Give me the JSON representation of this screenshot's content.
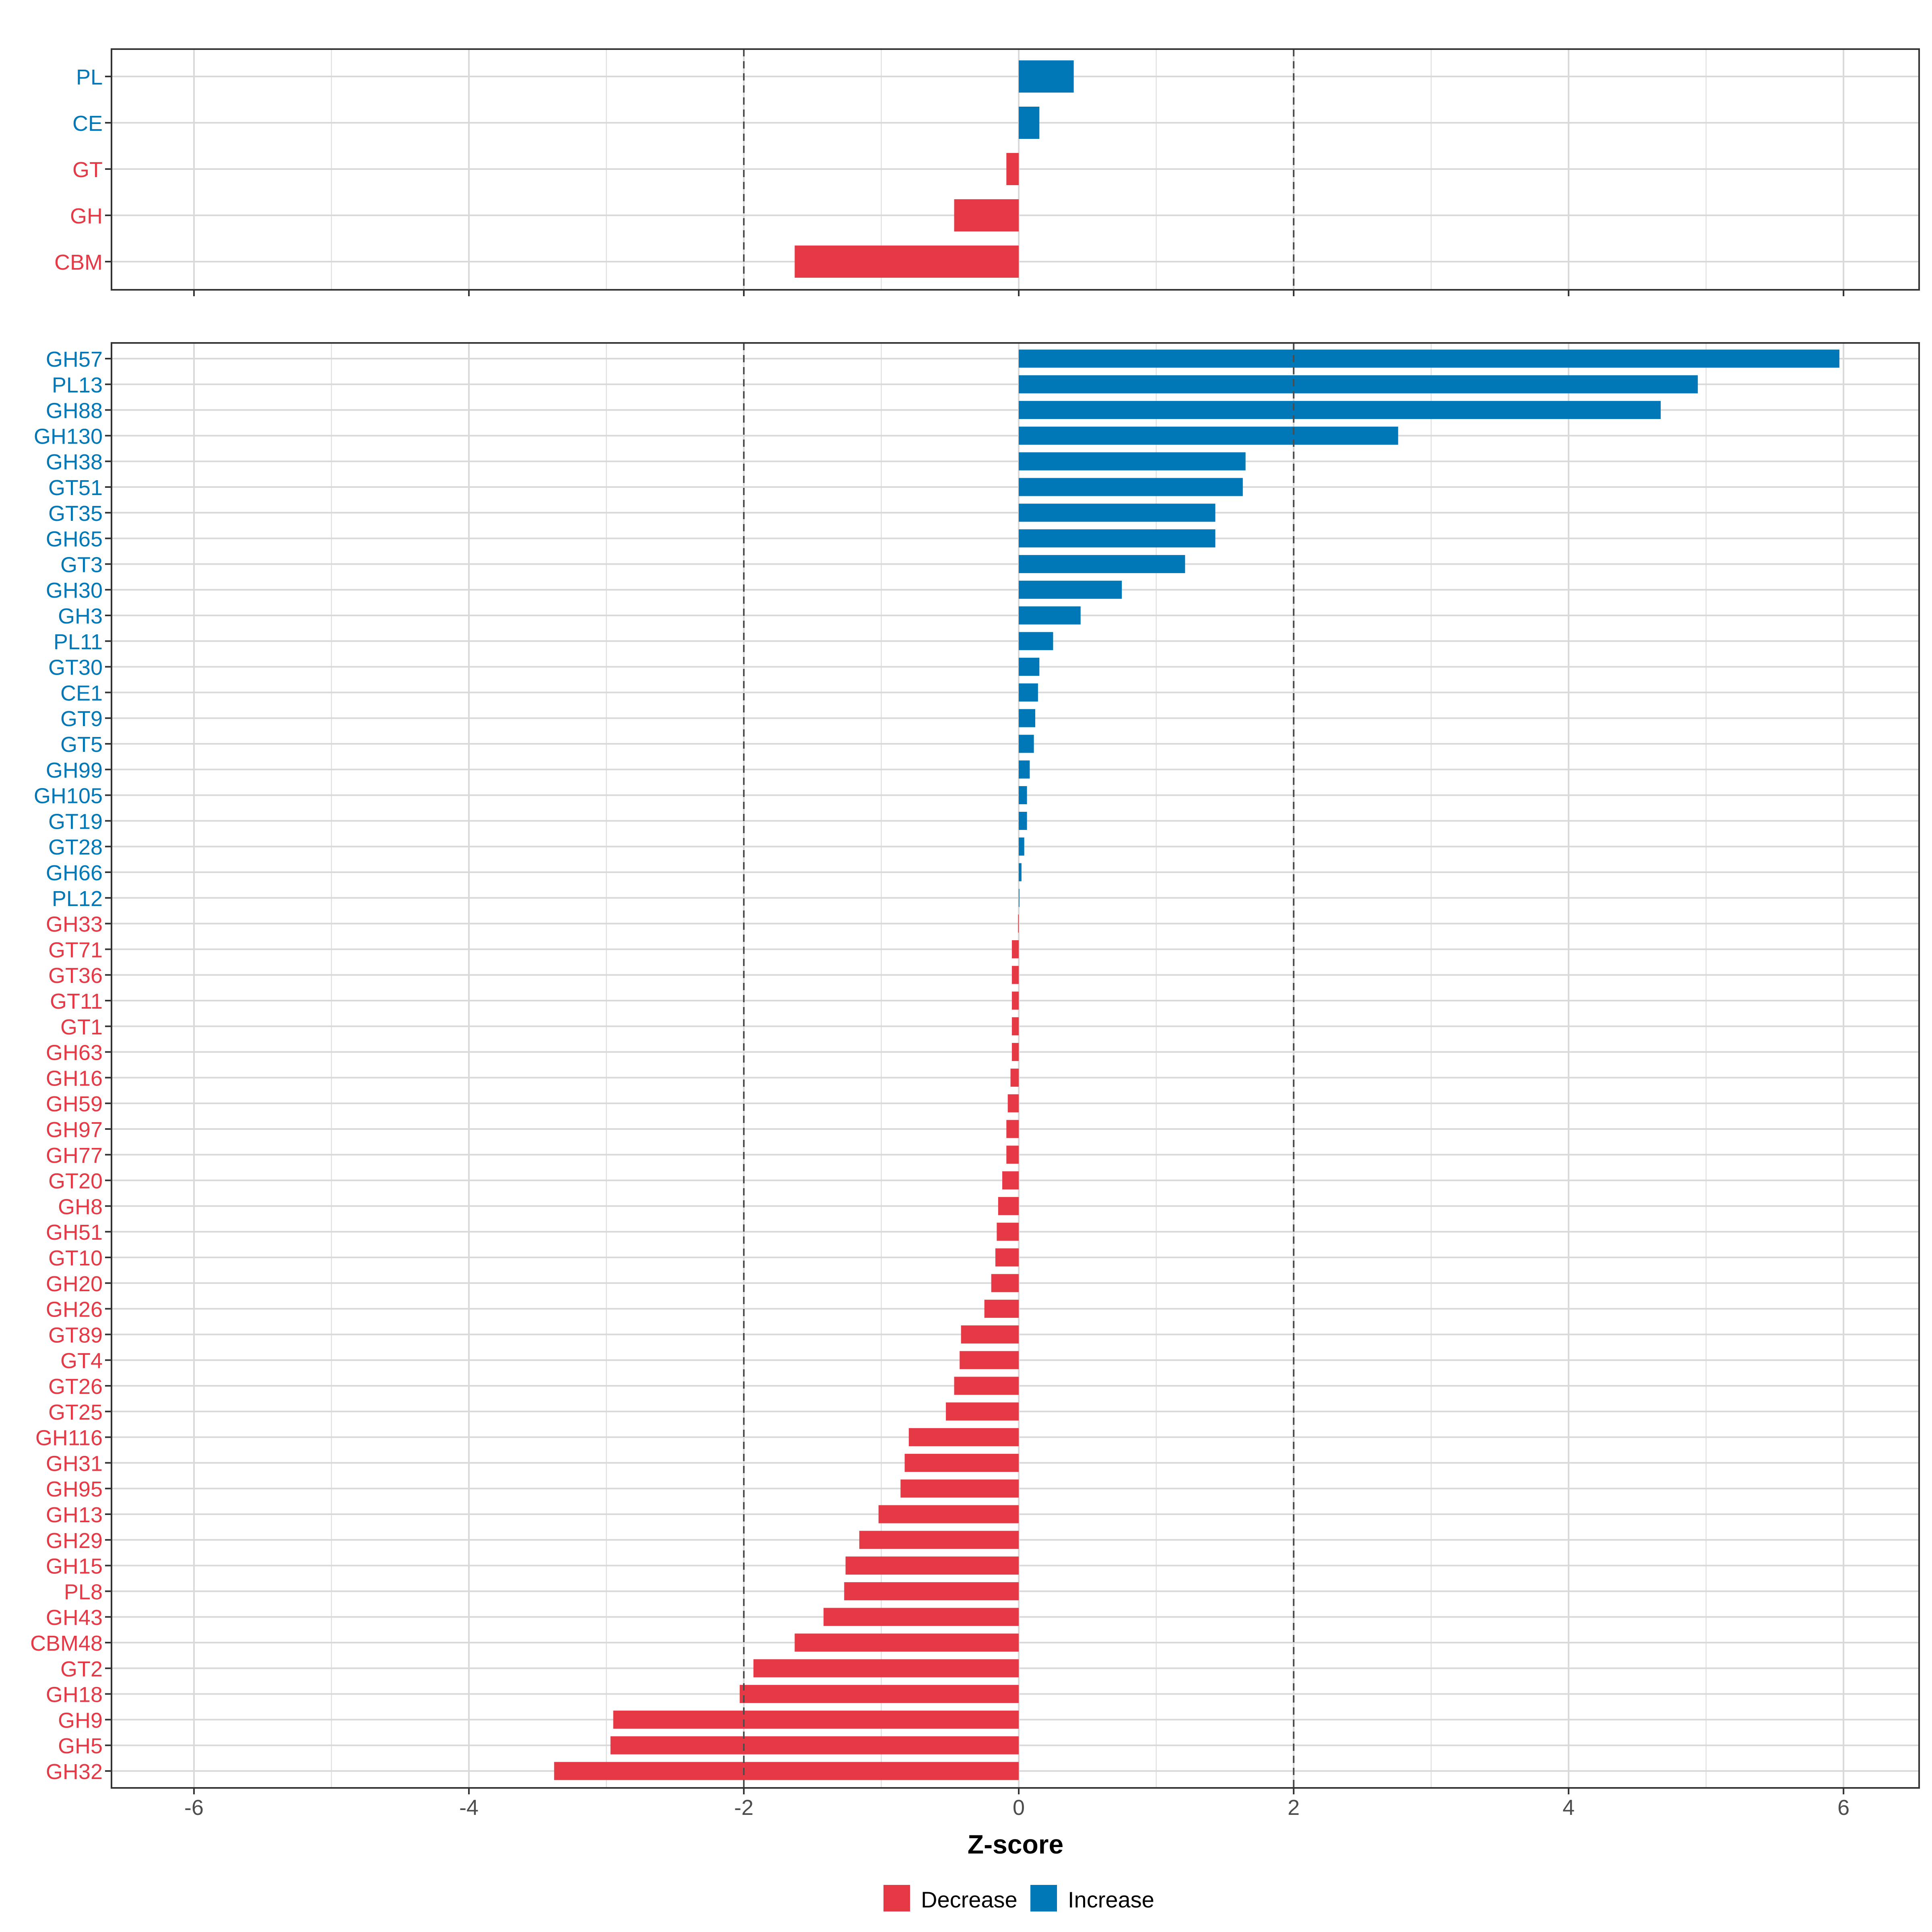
{
  "chart_data": [
    {
      "type": "bar",
      "orientation": "horizontal",
      "panel": "top",
      "categories": [
        "PL",
        "CE",
        "GT",
        "GH",
        "CBM"
      ],
      "values": [
        0.4,
        0.15,
        -0.09,
        -0.47,
        -1.63
      ],
      "xlim": [
        -6.6,
        6.55
      ],
      "reference_lines": [
        -2,
        2
      ],
      "grid": true
    },
    {
      "type": "bar",
      "orientation": "horizontal",
      "panel": "bottom",
      "categories": [
        "GH57",
        "PL13",
        "GH88",
        "GH130",
        "GH38",
        "GT51",
        "GT35",
        "GH65",
        "GT3",
        "GH30",
        "GH3",
        "PL11",
        "GT30",
        "CE1",
        "GT9",
        "GT5",
        "GH99",
        "GH105",
        "GT19",
        "GT28",
        "GH66",
        "PL12",
        "GH33",
        "GT71",
        "GT36",
        "GT11",
        "GT1",
        "GH63",
        "GH16",
        "GH59",
        "GH97",
        "GH77",
        "GT20",
        "GH8",
        "GH51",
        "GT10",
        "GH20",
        "GH26",
        "GT89",
        "GT4",
        "GT26",
        "GT25",
        "GH116",
        "GH31",
        "GH95",
        "GH13",
        "GH29",
        "GH15",
        "PL8",
        "GH43",
        "CBM48",
        "GT2",
        "GH18",
        "GH9",
        "GH5",
        "GH32"
      ],
      "values": [
        5.97,
        4.94,
        4.67,
        2.76,
        1.65,
        1.63,
        1.43,
        1.43,
        1.21,
        0.75,
        0.45,
        0.25,
        0.15,
        0.14,
        0.12,
        0.11,
        0.08,
        0.06,
        0.06,
        0.04,
        0.02,
        0.005,
        -0.005,
        -0.05,
        -0.05,
        -0.05,
        -0.05,
        -0.05,
        -0.06,
        -0.08,
        -0.09,
        -0.09,
        -0.12,
        -0.15,
        -0.16,
        -0.17,
        -0.2,
        -0.25,
        -0.42,
        -0.43,
        -0.47,
        -0.53,
        -0.8,
        -0.83,
        -0.86,
        -1.02,
        -1.16,
        -1.26,
        -1.27,
        -1.42,
        -1.63,
        -1.93,
        -2.03,
        -2.95,
        -2.97,
        -3.38
      ],
      "xlabel": "Z-score",
      "xticks": [
        -6,
        -4,
        -2,
        0,
        2,
        4,
        6
      ],
      "xlim": [
        -6.6,
        6.55
      ],
      "reference_lines": [
        -2,
        2
      ],
      "grid": true
    }
  ],
  "legend": {
    "position": "bottom",
    "entries": [
      {
        "label": "Decrease",
        "color": "#E63946"
      },
      {
        "label": "Increase",
        "color": "#0077B6"
      }
    ]
  },
  "colors": {
    "decrease": "#E63946",
    "increase": "#0077B6",
    "grid": "#D9D9D9",
    "reference_line": "#4D4D4D",
    "border": "#333333"
  }
}
